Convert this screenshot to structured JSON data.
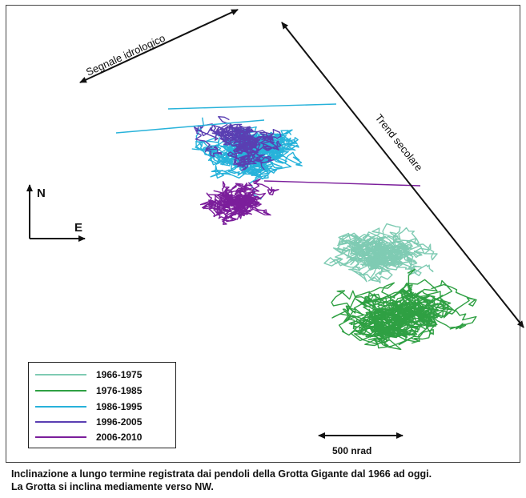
{
  "annotations": {
    "hydro_signal": "Segnale idrologico",
    "secular_trend": "Trend secolare",
    "north": "N",
    "east": "E",
    "scale_bar": "500 nrad"
  },
  "legend": {
    "items": [
      {
        "label": "1966-1975",
        "color": "#7fcbb3"
      },
      {
        "label": "1976-1985",
        "color": "#2fa043"
      },
      {
        "label": "1986-1995",
        "color": "#27b2da"
      },
      {
        "label": "1996-2005",
        "color": "#5a3fb2"
      },
      {
        "label": "2006-2010",
        "color": "#7b1e9b"
      }
    ]
  },
  "caption": {
    "line1": "Inclinazione a lungo termine registrata dai pendoli della Grotta Gigante dal 1966 ad oggi.",
    "line2": "La Grotta si inclina mediamente verso NW."
  }
}
